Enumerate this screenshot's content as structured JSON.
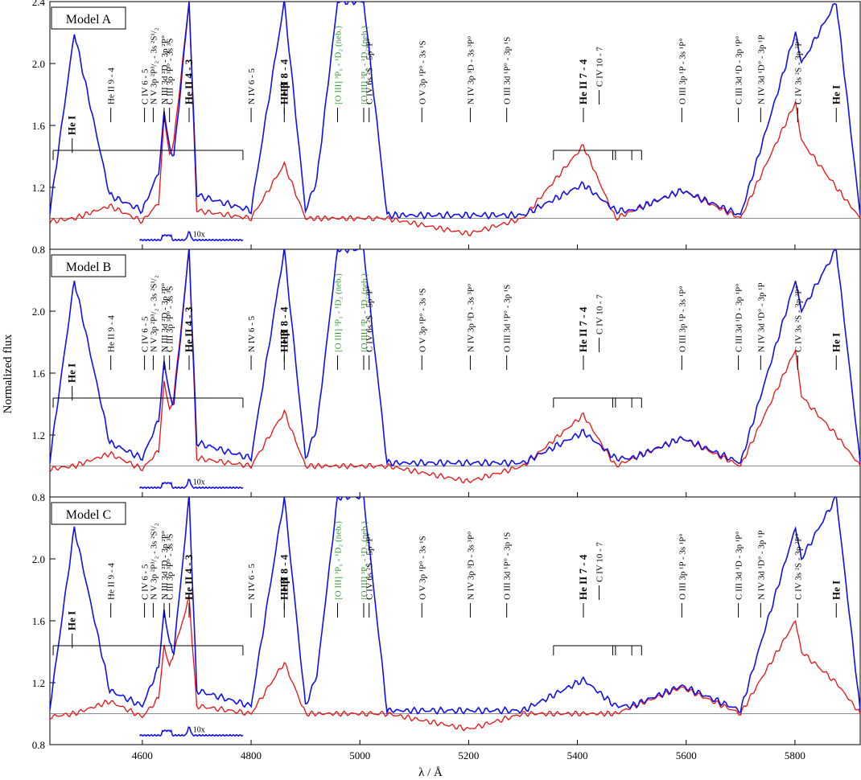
{
  "chart_data": {
    "type": "line",
    "xlabel": "λ / Å",
    "ylabel": "Normalized flux",
    "xlim": [
      4430,
      5920
    ],
    "ylim": [
      0.8,
      2.4
    ],
    "x_ticks": [
      4600,
      4800,
      5000,
      5200,
      5400,
      5600,
      5800
    ],
    "y_ticks_per_panel": [
      "0.8",
      "1.2",
      "1.6",
      "2.0",
      "2.4"
    ],
    "grid": false,
    "series_colors": {
      "observation": "#1010ee",
      "model": "#ee1010"
    },
    "inset_label": "10x",
    "panels": [
      {
        "label": "Model A",
        "observed": {
          "x": [
            4430,
            4475,
            4540,
            4600,
            4630,
            4640,
            4650,
            4658,
            4686,
            4700,
            4800,
            4861,
            4900,
            4921,
            4959,
            5007,
            5050,
            5100,
            5200,
            5300,
            5411,
            5470,
            5500,
            5592,
            5700,
            5801,
            5812,
            5876,
            5920
          ],
          "y": [
            1.04,
            2.2,
            1.15,
            1.05,
            1.3,
            1.68,
            1.45,
            1.4,
            2.4,
            1.15,
            1.05,
            2.4,
            1.05,
            1.25,
            2.4,
            2.4,
            1.02,
            1.02,
            1.02,
            1.02,
            1.22,
            1.05,
            1.05,
            1.18,
            1.02,
            2.2,
            2.0,
            2.4,
            1.02
          ]
        },
        "model": {
          "x": [
            4430,
            4475,
            4540,
            4600,
            4630,
            4640,
            4650,
            4658,
            4686,
            4700,
            4800,
            4861,
            4900,
            4959,
            5007,
            5050,
            5200,
            5300,
            5411,
            5470,
            5592,
            5700,
            5801,
            5812,
            5876,
            5920
          ],
          "y": [
            0.98,
            1.0,
            1.08,
            0.98,
            1.1,
            1.65,
            1.4,
            1.5,
            2.4,
            1.05,
            1.0,
            1.35,
            1.0,
            1.0,
            1.0,
            1.0,
            0.9,
            1.0,
            1.47,
            1.0,
            1.18,
            1.0,
            1.75,
            1.5,
            1.2,
            1.0
          ]
        }
      },
      {
        "label": "Model B",
        "observed": {
          "x": [
            4430,
            4475,
            4540,
            4600,
            4630,
            4640,
            4650,
            4658,
            4686,
            4700,
            4800,
            4861,
            4900,
            4921,
            4959,
            5007,
            5050,
            5100,
            5200,
            5300,
            5411,
            5470,
            5500,
            5592,
            5700,
            5801,
            5812,
            5876,
            5920
          ],
          "y": [
            1.04,
            2.2,
            1.15,
            1.05,
            1.3,
            1.68,
            1.45,
            1.4,
            2.4,
            1.15,
            1.05,
            2.4,
            1.05,
            1.25,
            2.4,
            2.4,
            1.02,
            1.02,
            1.02,
            1.02,
            1.22,
            1.05,
            1.05,
            1.18,
            1.02,
            2.2,
            2.0,
            2.4,
            1.02
          ]
        },
        "model": {
          "x": [
            4430,
            4475,
            4540,
            4600,
            4630,
            4640,
            4650,
            4658,
            4686,
            4700,
            4800,
            4861,
            4900,
            4959,
            5007,
            5050,
            5200,
            5300,
            5411,
            5470,
            5592,
            5700,
            5801,
            5812,
            5876,
            5920
          ],
          "y": [
            0.98,
            1.0,
            1.08,
            0.98,
            1.1,
            1.55,
            1.35,
            1.45,
            2.4,
            1.05,
            1.0,
            1.35,
            1.0,
            1.0,
            1.0,
            1.0,
            0.9,
            1.0,
            1.33,
            1.0,
            1.18,
            1.0,
            1.75,
            1.45,
            1.2,
            1.0
          ]
        }
      },
      {
        "label": "Model C",
        "observed": {
          "x": [
            4430,
            4475,
            4540,
            4600,
            4630,
            4640,
            4650,
            4658,
            4686,
            4700,
            4800,
            4861,
            4900,
            4921,
            4959,
            5007,
            5050,
            5100,
            5200,
            5300,
            5411,
            5470,
            5500,
            5592,
            5700,
            5801,
            5812,
            5876,
            5920
          ],
          "y": [
            1.04,
            2.2,
            1.15,
            1.05,
            1.3,
            1.68,
            1.45,
            1.4,
            2.4,
            1.15,
            1.05,
            2.4,
            1.05,
            1.25,
            2.4,
            2.4,
            1.02,
            1.02,
            1.02,
            1.02,
            1.22,
            1.05,
            1.05,
            1.18,
            1.02,
            2.2,
            2.0,
            2.4,
            1.02
          ]
        },
        "model": {
          "x": [
            4430,
            4475,
            4540,
            4600,
            4630,
            4640,
            4650,
            4658,
            4686,
            4700,
            4800,
            4861,
            4900,
            4959,
            5007,
            5050,
            5200,
            5300,
            5411,
            5470,
            5592,
            5700,
            5801,
            5812,
            5876,
            5920
          ],
          "y": [
            0.98,
            1.0,
            1.08,
            0.98,
            1.1,
            1.45,
            1.3,
            1.4,
            1.75,
            1.05,
            1.0,
            1.33,
            1.0,
            1.0,
            1.0,
            1.0,
            0.9,
            1.0,
            1.0,
            1.0,
            1.17,
            1.0,
            1.6,
            1.4,
            1.2,
            1.0
          ]
        }
      }
    ],
    "line_identifications": [
      {
        "text": "He I",
        "bold": true,
        "forbidden": false
      },
      {
        "text": "He II 9 - 4",
        "bold": false,
        "forbidden": false
      },
      {
        "text": "C IV 6 - 5",
        "bold": false,
        "forbidden": false
      },
      {
        "text": "N V 3p ²P³/₂ - 3s ²S¹/₂",
        "bold": false,
        "forbidden": false
      },
      {
        "text": "N III 3d ²D - 3p ²P°",
        "bold": false,
        "forbidden": false
      },
      {
        "text": "C III 3p ³P° - 3s ³S",
        "bold": false,
        "forbidden": false
      },
      {
        "text": "He II 4 - 3",
        "bold": true,
        "forbidden": false
      },
      {
        "text": "N IV 6 - 5",
        "bold": false,
        "forbidden": false
      },
      {
        "text": "He II 8 - 4",
        "bold": true,
        "forbidden": false
      },
      {
        "text": "Hβ",
        "bold": true,
        "forbidden": false
      },
      {
        "text": "[O III] ³P₁ - ¹D₂ (neb.)",
        "bold": false,
        "forbidden": true
      },
      {
        "text": "[O III] ³P₂ - ¹D₂ (neb.)",
        "bold": false,
        "forbidden": true
      },
      {
        "text": "C IV 6s ²S - 5p ²P°",
        "bold": false,
        "forbidden": false
      },
      {
        "text": "O V 3p ¹P° - 3s ¹S",
        "bold": false,
        "forbidden": false
      },
      {
        "text": "N IV 3p ³D - 3s ³P°",
        "bold": false,
        "forbidden": false
      },
      {
        "text": "O III 3d ¹P° - 3p ¹S",
        "bold": false,
        "forbidden": false
      },
      {
        "text": "He II 7 - 4",
        "bold": true,
        "forbidden": false
      },
      {
        "text": "C IV 10 - 7",
        "bold": false,
        "forbidden": false
      },
      {
        "text": "O III 3p ¹P - 3s ¹P°",
        "bold": false,
        "forbidden": false
      },
      {
        "text": "C III 3d ¹D - 3p ¹P°",
        "bold": false,
        "forbidden": false
      },
      {
        "text": "N IV 3d ¹D° - 3p ¹P",
        "bold": false,
        "forbidden": false
      },
      {
        "text": "C IV 3s ²S - 3p ²P°",
        "bold": false,
        "forbidden": false
      },
      {
        "text": "He I",
        "bold": true,
        "forbidden": false
      }
    ]
  }
}
